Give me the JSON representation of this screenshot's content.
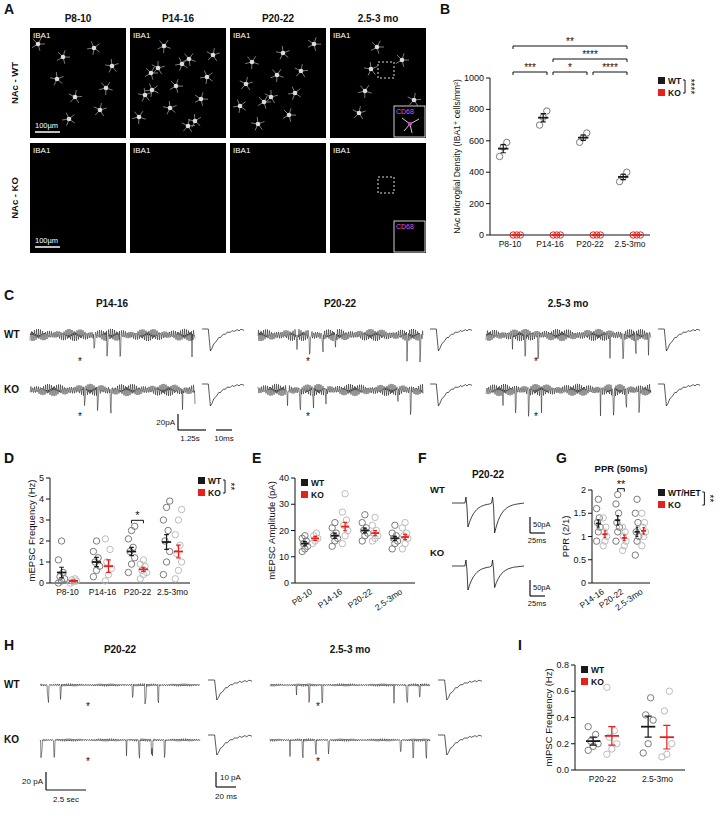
{
  "panel_letters": [
    "A",
    "B",
    "C",
    "D",
    "E",
    "F",
    "G",
    "H",
    "I"
  ],
  "images": {
    "columns": [
      "P8-10",
      "P14-16",
      "P20-22",
      "2.5-3 mo"
    ],
    "rows": [
      "NAc - WT",
      "NAc - KO"
    ],
    "stain": "IBA1",
    "inset_stain": "CD68",
    "scale_bar": "100µm"
  },
  "traces_C": {
    "columns": [
      "P14-16",
      "P20-22",
      "2.5-3 mo"
    ],
    "rows": [
      "WT",
      "KO"
    ],
    "event_marker": "*",
    "scale_y": "20pA",
    "scale_x": "1.25s",
    "scale_event": "10ms"
  },
  "traces_F": {
    "title": "P20-22",
    "rows": [
      "WT",
      "KO"
    ],
    "scale_y": "50pA",
    "scale_x": "25ms"
  },
  "traces_H": {
    "columns": [
      "P20-22",
      "2.5-3 mo"
    ],
    "rows": [
      "WT",
      "KO"
    ],
    "event_marker": "*",
    "scale_y": "20 pA",
    "scale_x": "2.5 sec",
    "scale_event_y": "10 pA",
    "scale_event_x": "20 ms"
  },
  "chart_data": [
    {
      "type": "dot",
      "y_label": "NAc Microglial Density (IBA1⁺ cells/mm²)",
      "categories": [
        "P8-10",
        "P14-16",
        "P20-22",
        "2.5-3mo"
      ],
      "ylim": [
        0,
        1000
      ],
      "yticks": [
        0,
        200,
        400,
        600,
        800,
        1000
      ],
      "legend": "right",
      "legend_annotation": "****",
      "annotations": [
        {
          "text": "**",
          "from": 0,
          "to": 3
        },
        {
          "text": "***",
          "from": 0,
          "to": 1
        },
        {
          "text": "****",
          "from": 1,
          "to": 3
        },
        {
          "text": "*",
          "from": 1,
          "to": 2
        },
        {
          "text": "****",
          "from": 2,
          "to": 3
        }
      ],
      "series": [
        {
          "name": "WT",
          "color": "#1a1a1a",
          "marker": "gray-circle",
          "values": [
            550,
            747,
            620,
            370
          ],
          "error": [
            26,
            26,
            17,
            17
          ],
          "points": [
            [
              500,
              560,
              590
            ],
            [
              700,
              750,
              790
            ],
            [
              590,
              620,
              650
            ],
            [
              340,
              370,
              400
            ]
          ]
        },
        {
          "name": "KO",
          "color": "#e8201c",
          "marker": "circle",
          "values": [
            0,
            0,
            0,
            0
          ],
          "error": [
            0,
            0,
            0,
            0
          ],
          "points": [
            [
              0,
              0,
              0
            ],
            [
              0,
              0,
              0
            ],
            [
              0,
              0,
              0
            ],
            [
              0,
              0,
              0
            ]
          ]
        }
      ]
    },
    {
      "type": "dot",
      "y_label": "mEPSC Frequency (Hz)",
      "categories": [
        "P8-10",
        "P14-16",
        "P20-22",
        "2.5-3mo"
      ],
      "ylim": [
        0,
        5
      ],
      "yticks": [
        0,
        1,
        2,
        3,
        4,
        5
      ],
      "legend": "right",
      "legend_annotation": "**",
      "annotations": [
        {
          "text": "*",
          "category": 2
        }
      ],
      "series": [
        {
          "name": "WT",
          "color": "#1a1a1a",
          "marker": "gray-circle",
          "values": [
            0.5,
            1.0,
            1.5,
            1.95
          ],
          "error": [
            0.25,
            0.22,
            0.2,
            0.35
          ],
          "points": [
            [
              0,
              0.1,
              0.2,
              0.3,
              0.5,
              1.1,
              2
            ],
            [
              0.3,
              0.6,
              0.8,
              1.0,
              1.2,
              1.5,
              2.0
            ],
            [
              0.5,
              0.9,
              1.2,
              1.5,
              1.7,
              2.1,
              2.5,
              2.7
            ],
            [
              0.4,
              1.0,
              1.5,
              2.0,
              2.5,
              3.0,
              3.6,
              3.9
            ]
          ]
        },
        {
          "name": "KO",
          "color": "#e8201c",
          "marker": "light-circle",
          "values": [
            0.1,
            0.8,
            0.65,
            1.5
          ],
          "error": [
            0.04,
            0.3,
            0.1,
            0.3
          ],
          "points": [
            [
              0,
              0.05,
              0.1,
              0.15,
              0.2
            ],
            [
              0.1,
              0.4,
              0.7,
              1.0,
              1.6,
              2.1
            ],
            [
              0.2,
              0.4,
              0.5,
              0.6,
              0.8,
              0.9,
              1.1
            ],
            [
              0.2,
              0.6,
              1.0,
              1.4,
              1.8,
              2.3,
              3.0,
              3.5
            ]
          ]
        }
      ]
    },
    {
      "type": "dot",
      "y_label": "mEPSC Amplitude (pA)",
      "categories": [
        "P8-10",
        "P14-16",
        "P20-22",
        "2.5-3mo"
      ],
      "ylim": [
        0,
        40
      ],
      "yticks": [
        0,
        10,
        20,
        30,
        40
      ],
      "legend": "top-left",
      "series": [
        {
          "name": "WT",
          "color": "#1a1a1a",
          "marker": "gray-circle",
          "values": [
            15,
            18,
            20,
            17
          ],
          "error": [
            0.8,
            1,
            0.9,
            0.8
          ],
          "points": [
            [
              12,
              13,
              14,
              15,
              16,
              17,
              18
            ],
            [
              14,
              16,
              17,
              18,
              19,
              21,
              23
            ],
            [
              16,
              18,
              19,
              20,
              21,
              23,
              26
            ],
            [
              13,
              15,
              16,
              17,
              18,
              19,
              22
            ]
          ]
        },
        {
          "name": "KO",
          "color": "#e8201c",
          "marker": "light-circle",
          "values": [
            17,
            21.5,
            19,
            17.5
          ],
          "error": [
            0.8,
            1.6,
            1,
            1
          ],
          "points": [
            [
              15,
              16,
              17,
              18,
              19
            ],
            [
              15,
              18,
              20,
              22,
              24,
              27,
              34
            ],
            [
              16,
              17,
              18,
              19,
              20,
              22,
              25
            ],
            [
              13,
              15,
              17,
              18,
              19,
              21,
              23
            ]
          ]
        }
      ]
    },
    {
      "type": "dot",
      "title": "PPR (50ms)",
      "y_label": "PPR (2/1)",
      "categories": [
        "P14-16",
        "P20-22",
        "2.5-3mo"
      ],
      "ylim": [
        0,
        2
      ],
      "yticks": [
        0,
        0.5,
        1,
        1.5,
        2
      ],
      "legend": "right",
      "legend_annotation": "**",
      "annotations": [
        {
          "text": "**",
          "category": 1
        }
      ],
      "series": [
        {
          "name": "WT/HET",
          "color": "#1a1a1a",
          "marker": "gray-circle",
          "values": [
            1.28,
            1.35,
            1.1
          ],
          "error": [
            0.08,
            0.1,
            0.1
          ],
          "points": [
            [
              0.9,
              1.1,
              1.2,
              1.3,
              1.4,
              1.6,
              1.8
            ],
            [
              0.9,
              1.1,
              1.2,
              1.3,
              1.5,
              1.7,
              1.9
            ],
            [
              0.6,
              0.9,
              1.0,
              1.1,
              1.3,
              1.5,
              1.8
            ]
          ]
        },
        {
          "name": "KO",
          "color": "#e8201c",
          "marker": "light-circle",
          "values": [
            1.05,
            0.97,
            1.12
          ],
          "error": [
            0.07,
            0.06,
            0.07
          ],
          "points": [
            [
              0.8,
              0.9,
              1.0,
              1.1,
              1.2,
              1.4
            ],
            [
              0.7,
              0.8,
              0.9,
              1.0,
              1.1,
              1.2
            ],
            [
              0.8,
              1.0,
              1.1,
              1.2,
              1.3,
              1.5
            ]
          ]
        }
      ]
    },
    {
      "type": "dot",
      "y_label": "mIPSC Frequency (Hz)",
      "categories": [
        "P20-22",
        "2.5-3mo"
      ],
      "ylim": [
        0,
        0.8
      ],
      "yticks": [
        {
          "value": 0,
          "label": "0.0"
        },
        0.2,
        0.4,
        0.6,
        0.8
      ],
      "legend": "top-left",
      "series": [
        {
          "name": "WT",
          "color": "#1a1a1a",
          "marker": "gray-circle",
          "values": [
            0.22,
            0.33
          ],
          "error": [
            0.03,
            0.08
          ],
          "points": [
            [
              0.15,
              0.18,
              0.2,
              0.22,
              0.27,
              0.33
            ],
            [
              0.13,
              0.2,
              0.38,
              0.42,
              0.55
            ]
          ]
        },
        {
          "name": "KO",
          "color": "#e8201c",
          "marker": "light-circle",
          "values": [
            0.26,
            0.25
          ],
          "error": [
            0.07,
            0.09
          ],
          "points": [
            [
              0.12,
              0.16,
              0.2,
              0.25,
              0.3,
              0.63
            ],
            [
              0.1,
              0.12,
              0.2,
              0.45,
              0.6
            ]
          ]
        }
      ]
    }
  ]
}
